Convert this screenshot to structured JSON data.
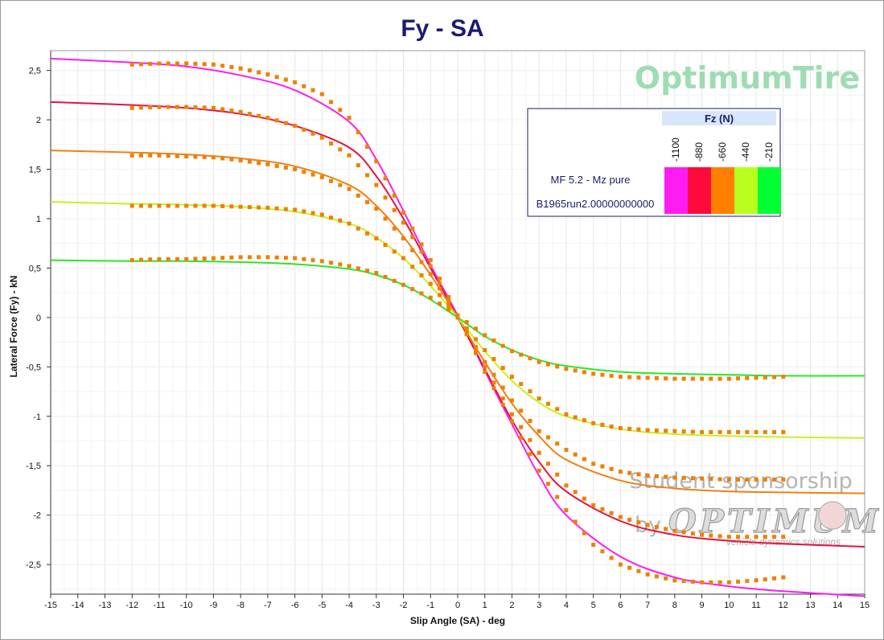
{
  "chart_data": {
    "type": "line",
    "title": "Fy - SA",
    "xlabel": "Slip Angle (SA) - deg",
    "ylabel": "Lateral Force (Fy) - kN",
    "xlim": [
      -15,
      15
    ],
    "ylim": [
      -2.8,
      2.7
    ],
    "x_ticks": [
      -15,
      -14,
      -13,
      -12,
      -11,
      -10,
      -9,
      -8,
      -7,
      -6,
      -5,
      -4,
      -3,
      -2,
      -1,
      0,
      1,
      2,
      3,
      4,
      5,
      6,
      7,
      8,
      9,
      10,
      11,
      12,
      13,
      14,
      15
    ],
    "y_ticks": [
      2.5,
      2,
      1.5,
      1,
      0.5,
      0,
      -0.5,
      -1,
      -1.5,
      -2,
      -2.5
    ],
    "y_tick_labels": [
      "2,5",
      "2",
      "1,5",
      "1",
      "0,5",
      "0",
      "-0,5",
      "-1",
      "-1,5",
      "-2",
      "-2,5"
    ],
    "grid": true,
    "legend": {
      "placement": "top-right",
      "header": "Fz (N)",
      "fz_values": [
        "-1100",
        "-880",
        "-660",
        "-440",
        "-210"
      ],
      "fz_colors": [
        "#ff1cf0",
        "#ff0a3c",
        "#ff7f00",
        "#b8ff1e",
        "#00ff33"
      ],
      "rows": [
        "MF 5.2 - Mz pure",
        "B1965run2.00000000000"
      ]
    },
    "series": [
      {
        "name": "-1100",
        "color": "#ff1cf0",
        "kind": "model",
        "x": [
          -15,
          -12,
          -10,
          -8,
          -6,
          -4,
          -3,
          -2,
          -1,
          0,
          1,
          2,
          3,
          4,
          6,
          8,
          10,
          12,
          15
        ],
        "y": [
          2.62,
          2.58,
          2.54,
          2.45,
          2.3,
          1.98,
          1.6,
          1.08,
          0.53,
          0.02,
          -0.54,
          -1.08,
          -1.6,
          -2.0,
          -2.42,
          -2.63,
          -2.72,
          -2.77,
          -2.82
        ]
      },
      {
        "name": "-880",
        "color": "#e8103c",
        "kind": "model",
        "x": [
          -15,
          -12,
          -10,
          -8,
          -6,
          -4,
          -3,
          -2,
          -1,
          0,
          1,
          2,
          3,
          4,
          6,
          8,
          10,
          12,
          15
        ],
        "y": [
          2.18,
          2.15,
          2.12,
          2.06,
          1.94,
          1.72,
          1.43,
          1.0,
          0.5,
          0.0,
          -0.52,
          -1.04,
          -1.46,
          -1.76,
          -2.06,
          -2.2,
          -2.26,
          -2.29,
          -2.32
        ]
      },
      {
        "name": "-660",
        "color": "#f08010",
        "kind": "model",
        "x": [
          -15,
          -12,
          -10,
          -8,
          -6,
          -4,
          -3,
          -2,
          -1,
          0,
          1,
          2,
          3,
          4,
          6,
          8,
          10,
          12,
          15
        ],
        "y": [
          1.69,
          1.67,
          1.65,
          1.61,
          1.53,
          1.34,
          1.13,
          0.82,
          0.43,
          0.0,
          -0.45,
          -0.87,
          -1.2,
          -1.44,
          -1.65,
          -1.73,
          -1.76,
          -1.77,
          -1.78
        ]
      },
      {
        "name": "-440",
        "color": "#c8f020",
        "kind": "model",
        "x": [
          -15,
          -12,
          -10,
          -8,
          -6,
          -4,
          -3,
          -2,
          -1,
          0,
          1,
          2,
          3,
          4,
          6,
          8,
          10,
          12,
          15
        ],
        "y": [
          1.17,
          1.15,
          1.14,
          1.12,
          1.07,
          0.95,
          0.81,
          0.6,
          0.32,
          0.0,
          -0.34,
          -0.64,
          -0.86,
          -1.0,
          -1.13,
          -1.18,
          -1.2,
          -1.21,
          -1.22
        ]
      },
      {
        "name": "-210",
        "color": "#28e828",
        "kind": "model",
        "x": [
          -15,
          -12,
          -10,
          -8,
          -6,
          -4,
          -3,
          -2,
          -1,
          0,
          1,
          2,
          3,
          4,
          6,
          8,
          10,
          12,
          15
        ],
        "y": [
          0.58,
          0.57,
          0.57,
          0.56,
          0.54,
          0.49,
          0.43,
          0.33,
          0.18,
          0.0,
          -0.19,
          -0.33,
          -0.43,
          -0.49,
          -0.55,
          -0.57,
          -0.58,
          -0.59,
          -0.59
        ]
      }
    ],
    "measured": {
      "color": "#f07f00",
      "sets": [
        {
          "x": [
            -12,
            -11,
            -10,
            -9,
            -8,
            -7,
            -6,
            -5,
            -4,
            -3,
            -2,
            -1,
            0,
            1,
            2,
            3,
            4,
            5,
            6,
            7,
            8,
            9,
            10,
            11,
            12
          ],
          "y": [
            2.56,
            2.57,
            2.57,
            2.56,
            2.52,
            2.46,
            2.38,
            2.26,
            2.02,
            1.58,
            1.06,
            0.58,
            0.02,
            -0.55,
            -1.05,
            -1.55,
            -1.95,
            -2.3,
            -2.5,
            -2.6,
            -2.66,
            -2.68,
            -2.68,
            -2.66,
            -2.63
          ]
        },
        {
          "x": [
            -12,
            -11,
            -10,
            -9,
            -8,
            -7,
            -6,
            -5,
            -4,
            -3,
            -2,
            -1,
            0,
            1,
            2,
            3,
            4,
            5,
            6,
            7,
            8,
            9,
            10,
            11,
            12
          ],
          "y": [
            2.12,
            2.13,
            2.13,
            2.12,
            2.08,
            2.02,
            1.94,
            1.82,
            1.64,
            1.34,
            0.96,
            0.52,
            0.0,
            -0.5,
            -0.98,
            -1.37,
            -1.7,
            -1.9,
            -2.02,
            -2.1,
            -2.16,
            -2.2,
            -2.22,
            -2.22,
            -2.22
          ]
        },
        {
          "x": [
            -12,
            -11,
            -10,
            -9,
            -8,
            -7,
            -6,
            -5,
            -4,
            -3,
            -2,
            -1,
            0,
            1,
            2,
            3,
            4,
            5,
            6,
            7,
            8,
            9,
            10,
            11,
            12
          ],
          "y": [
            1.64,
            1.64,
            1.63,
            1.62,
            1.59,
            1.55,
            1.5,
            1.42,
            1.3,
            1.1,
            0.8,
            0.44,
            0.0,
            -0.45,
            -0.84,
            -1.15,
            -1.34,
            -1.48,
            -1.56,
            -1.6,
            -1.62,
            -1.63,
            -1.64,
            -1.64,
            -1.64
          ]
        },
        {
          "x": [
            -12,
            -11,
            -10,
            -9,
            -8,
            -7,
            -6,
            -5,
            -4,
            -3,
            -2,
            -1,
            0,
            1,
            2,
            3,
            4,
            5,
            6,
            7,
            8,
            9,
            10,
            11,
            12
          ],
          "y": [
            1.13,
            1.13,
            1.13,
            1.13,
            1.12,
            1.11,
            1.09,
            1.04,
            0.95,
            0.8,
            0.6,
            0.34,
            0.0,
            -0.33,
            -0.6,
            -0.82,
            -0.98,
            -1.07,
            -1.12,
            -1.14,
            -1.15,
            -1.16,
            -1.16,
            -1.16,
            -1.16
          ]
        },
        {
          "x": [
            -12,
            -11,
            -10,
            -9,
            -8,
            -7,
            -6,
            -5,
            -4,
            -3,
            -2,
            -1,
            0,
            1,
            2,
            3,
            4,
            5,
            6,
            7,
            8,
            9,
            10,
            11,
            12
          ],
          "y": [
            0.58,
            0.59,
            0.59,
            0.6,
            0.61,
            0.61,
            0.6,
            0.57,
            0.52,
            0.45,
            0.33,
            0.2,
            0.02,
            -0.18,
            -0.34,
            -0.45,
            -0.52,
            -0.57,
            -0.6,
            -0.61,
            -0.62,
            -0.62,
            -0.62,
            -0.61,
            -0.6
          ]
        }
      ]
    }
  },
  "branding": {
    "brand_name": "OptimumTire",
    "sponsor_line1": "Student sponsorship",
    "sponsor_by": "by",
    "sponsor_logo": "OPTIMUM",
    "sponsor_sub": "vehicle dynamics solutions"
  }
}
